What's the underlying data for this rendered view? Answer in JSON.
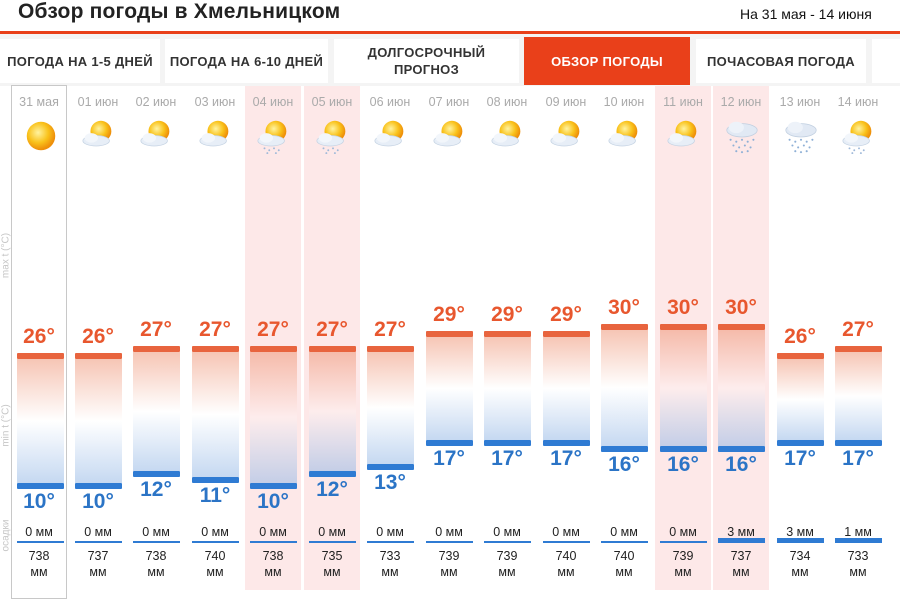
{
  "header": {
    "title": "Обзор погоды в Хмельницком",
    "date_range": "На 31 мая - 14 июня"
  },
  "tabs": [
    {
      "label": "Погода на 1-5 дней",
      "active": false
    },
    {
      "label": "Погода на 6-10 дней",
      "active": false
    },
    {
      "label": "Долгосрочный прогноз",
      "active": false
    },
    {
      "label": "Обзор погоды",
      "active": true
    },
    {
      "label": "Почасовая погода",
      "active": false
    }
  ],
  "axis_labels": {
    "max": "max t (°C)",
    "min": "min t (°C)",
    "precip": "осадки"
  },
  "days": [
    {
      "date": "31 мая",
      "icon": "sun-icon",
      "max": "26°",
      "min": "10°",
      "max_val": 26,
      "min_val": 10,
      "precip": "0 мм",
      "precip_val": 0,
      "pressure": "738",
      "pressure_unit": "мм",
      "weekend": false,
      "today": true
    },
    {
      "date": "01 июн",
      "icon": "sun-cloud-icon",
      "max": "26°",
      "min": "10°",
      "max_val": 26,
      "min_val": 10,
      "precip": "0 мм",
      "precip_val": 0,
      "pressure": "737",
      "pressure_unit": "мм",
      "weekend": false,
      "today": false
    },
    {
      "date": "02 июн",
      "icon": "sun-cloud-icon",
      "max": "27°",
      "min": "12°",
      "max_val": 27,
      "min_val": 12,
      "precip": "0 мм",
      "precip_val": 0,
      "pressure": "738",
      "pressure_unit": "мм",
      "weekend": false,
      "today": false
    },
    {
      "date": "03 июн",
      "icon": "sun-cloud-icon",
      "max": "27°",
      "min": "11°",
      "max_val": 27,
      "min_val": 11,
      "precip": "0 мм",
      "precip_val": 0,
      "pressure": "740",
      "pressure_unit": "мм",
      "weekend": false,
      "today": false
    },
    {
      "date": "04 июн",
      "icon": "sun-cloud-rain-icon",
      "max": "27°",
      "min": "10°",
      "max_val": 27,
      "min_val": 10,
      "precip": "0 мм",
      "precip_val": 0,
      "pressure": "738",
      "pressure_unit": "мм",
      "weekend": true,
      "today": false
    },
    {
      "date": "05 июн",
      "icon": "sun-cloud-rain-icon",
      "max": "27°",
      "min": "12°",
      "max_val": 27,
      "min_val": 12,
      "precip": "0 мм",
      "precip_val": 0,
      "pressure": "735",
      "pressure_unit": "мм",
      "weekend": true,
      "today": false
    },
    {
      "date": "06 июн",
      "icon": "sun-cloud-icon",
      "max": "27°",
      "min": "13°",
      "max_val": 27,
      "min_val": 13,
      "precip": "0 мм",
      "precip_val": 0,
      "pressure": "733",
      "pressure_unit": "мм",
      "weekend": false,
      "today": false
    },
    {
      "date": "07 июн",
      "icon": "sun-cloud-icon",
      "max": "29°",
      "min": "17°",
      "max_val": 29,
      "min_val": 17,
      "precip": "0 мм",
      "precip_val": 0,
      "pressure": "739",
      "pressure_unit": "мм",
      "weekend": false,
      "today": false
    },
    {
      "date": "08 июн",
      "icon": "sun-cloud-icon",
      "max": "29°",
      "min": "17°",
      "max_val": 29,
      "min_val": 17,
      "precip": "0 мм",
      "precip_val": 0,
      "pressure": "739",
      "pressure_unit": "мм",
      "weekend": false,
      "today": false
    },
    {
      "date": "09 июн",
      "icon": "sun-cloud-icon",
      "max": "29°",
      "min": "17°",
      "max_val": 29,
      "min_val": 17,
      "precip": "0 мм",
      "precip_val": 0,
      "pressure": "740",
      "pressure_unit": "мм",
      "weekend": false,
      "today": false
    },
    {
      "date": "10 июн",
      "icon": "sun-cloud-icon",
      "max": "30°",
      "min": "16°",
      "max_val": 30,
      "min_val": 16,
      "precip": "0 мм",
      "precip_val": 0,
      "pressure": "740",
      "pressure_unit": "мм",
      "weekend": false,
      "today": false
    },
    {
      "date": "11 июн",
      "icon": "sun-cloud-icon",
      "max": "30°",
      "min": "16°",
      "max_val": 30,
      "min_val": 16,
      "precip": "0 мм",
      "precip_val": 0,
      "pressure": "739",
      "pressure_unit": "мм",
      "weekend": true,
      "today": false
    },
    {
      "date": "12 июн",
      "icon": "cloud-rain-icon",
      "max": "30°",
      "min": "16°",
      "max_val": 30,
      "min_val": 16,
      "precip": "3 мм",
      "precip_val": 3,
      "pressure": "737",
      "pressure_unit": "мм",
      "weekend": true,
      "today": false
    },
    {
      "date": "13 июн",
      "icon": "cloud-rain-icon",
      "max": "26°",
      "min": "17°",
      "max_val": 26,
      "min_val": 17,
      "precip": "3 мм",
      "precip_val": 3,
      "pressure": "734",
      "pressure_unit": "мм",
      "weekend": false,
      "today": false
    },
    {
      "date": "14 июн",
      "icon": "sun-cloud-rain-icon",
      "max": "27°",
      "min": "17°",
      "max_val": 27,
      "min_val": 17,
      "precip": "1 мм",
      "precip_val": 1,
      "pressure": "733",
      "pressure_unit": "мм",
      "weekend": false,
      "today": false
    }
  ],
  "colors": {
    "accent": "#e9401a",
    "max_color": "#e8572e",
    "min_color": "#2b74c6",
    "weekend_bg": "#fde8e8"
  }
}
